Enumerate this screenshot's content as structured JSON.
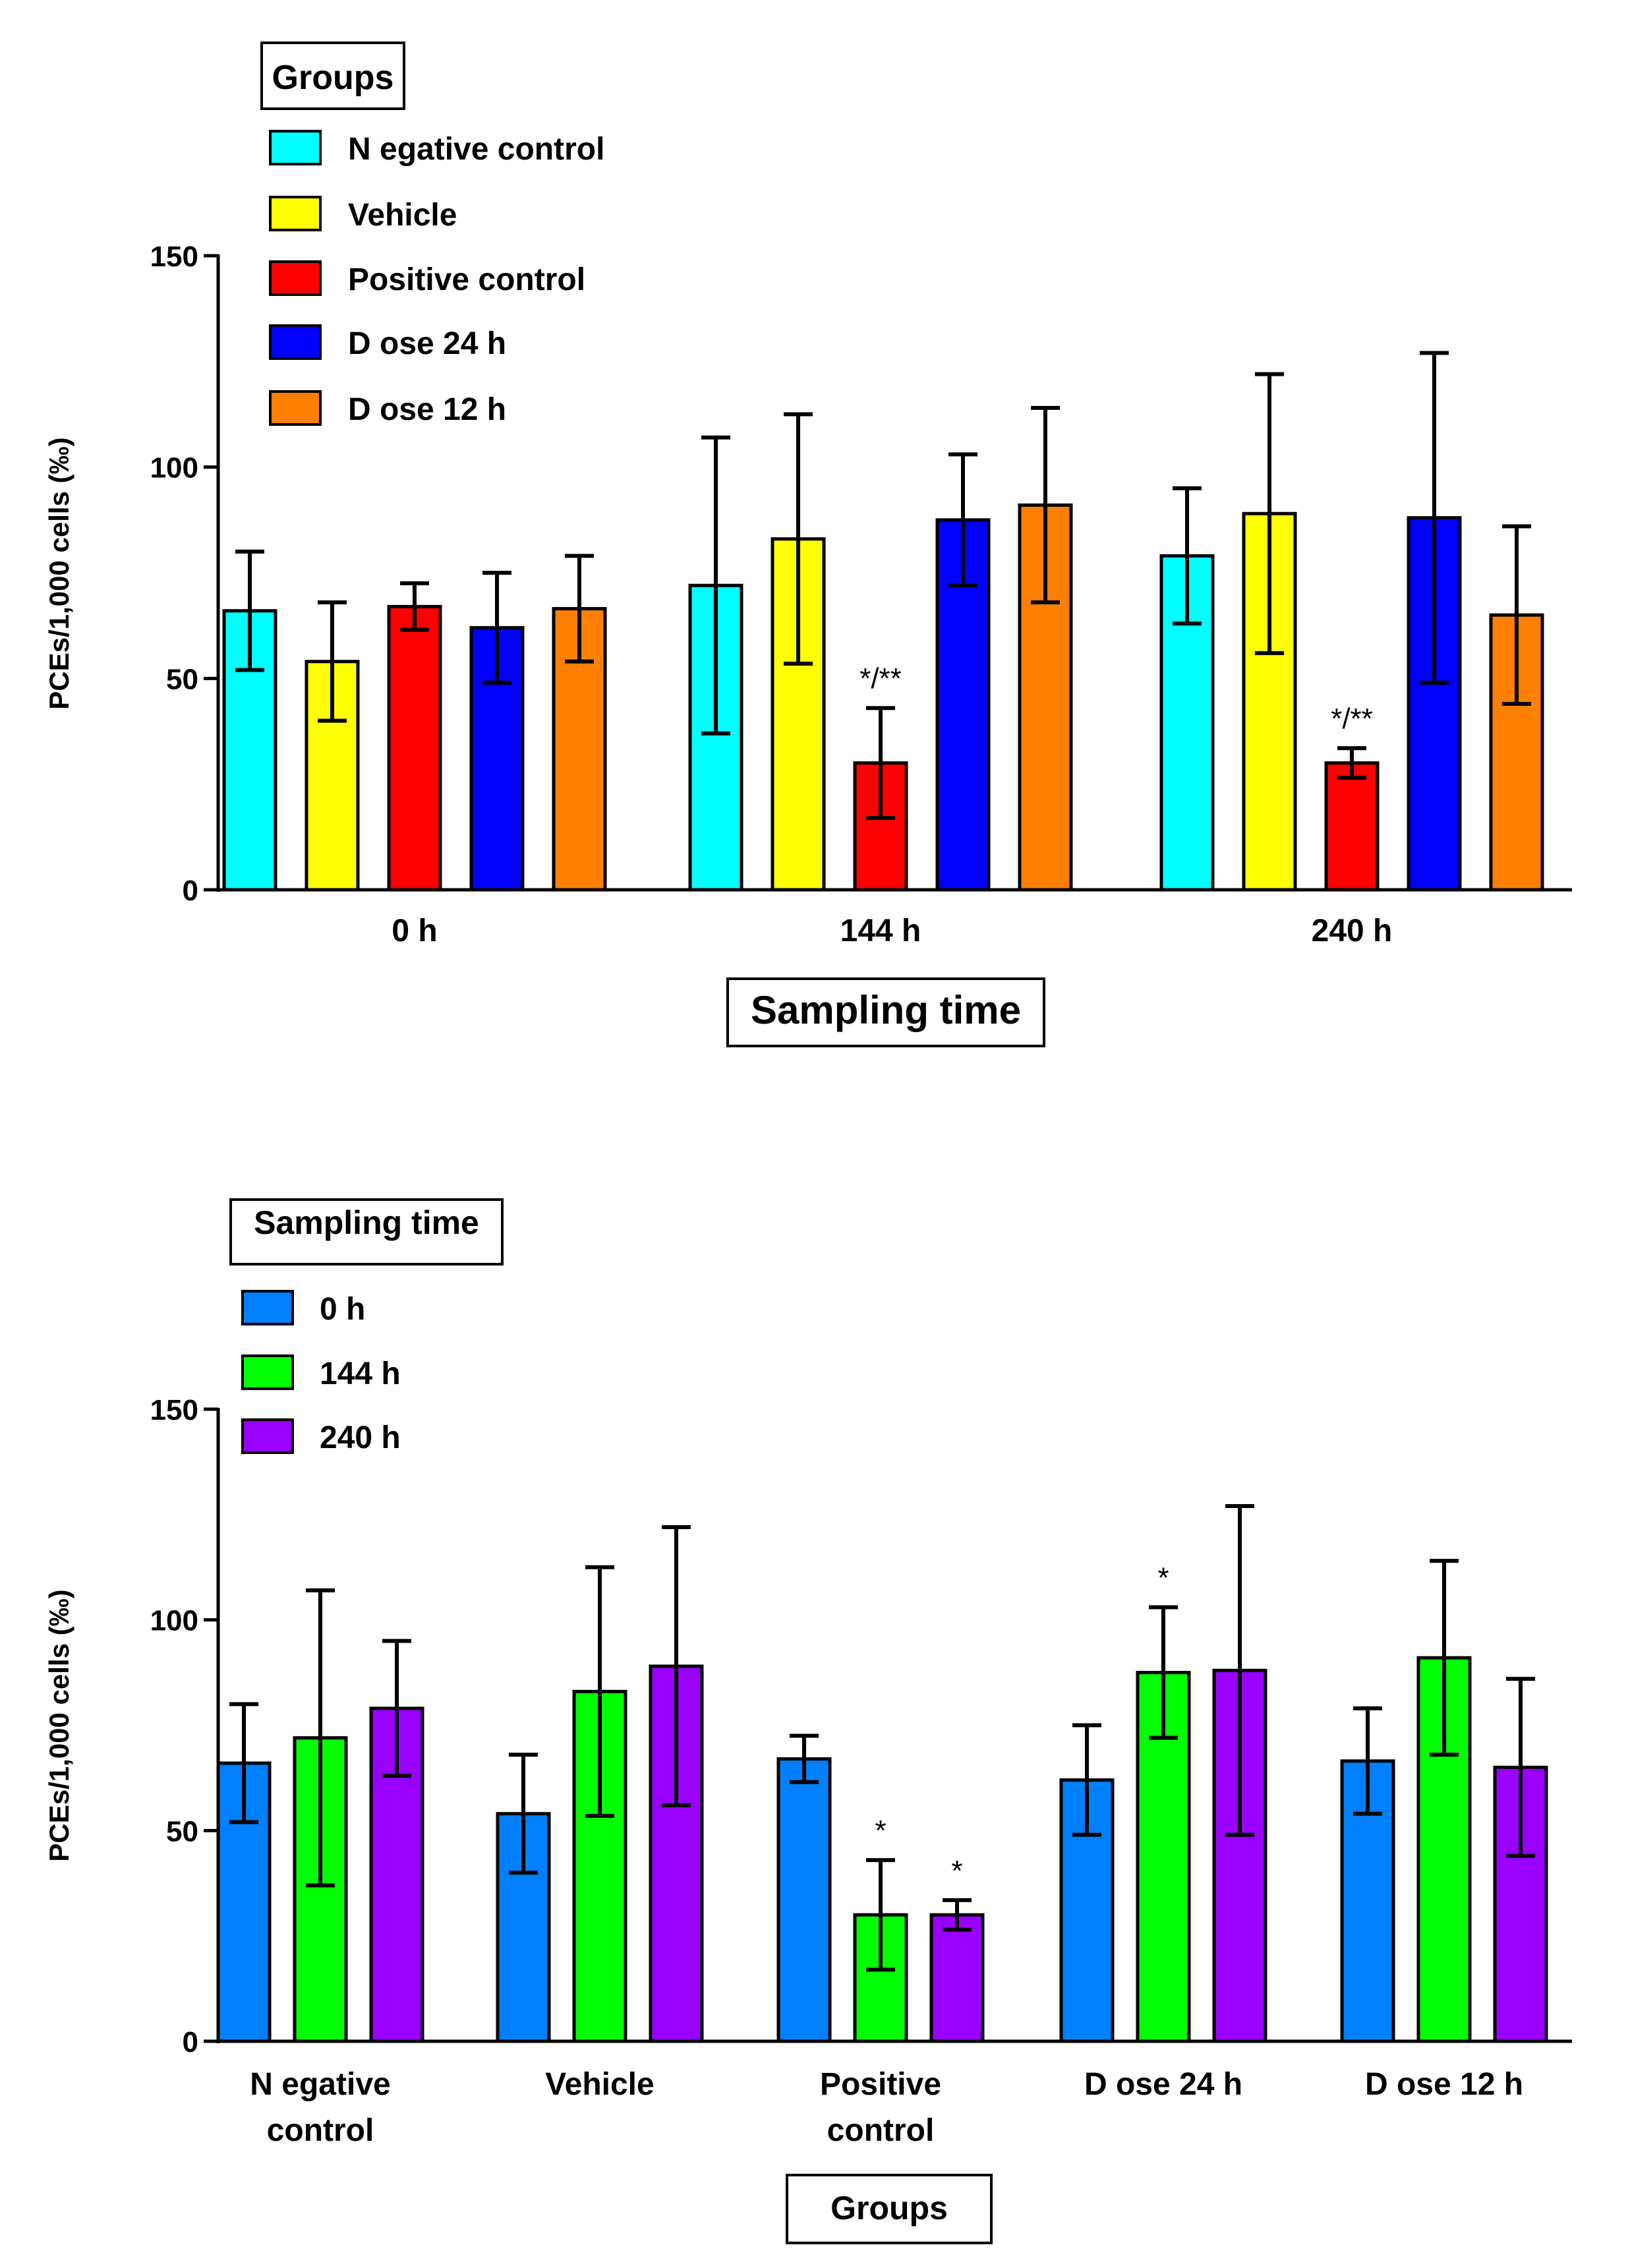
{
  "chart_data": [
    {
      "type": "bar",
      "xlabel": "Sampling time",
      "ylabel": "PCEs/1,000 cells (‰)",
      "ylim": [
        0,
        150
      ],
      "yticks": [
        0,
        50,
        100,
        150
      ],
      "categories": [
        "0 h",
        "144 h",
        "240 h"
      ],
      "legend_title": "Groups",
      "legend_placement": "top-left",
      "series": [
        {
          "name": "Negative control",
          "color": "#00FFFF",
          "values": [
            66,
            72,
            79
          ],
          "errors": [
            14,
            35,
            16
          ]
        },
        {
          "name": "Vehicle",
          "color": "#FFFF00",
          "values": [
            54,
            83,
            89
          ],
          "errors": [
            14,
            29.5,
            33
          ]
        },
        {
          "name": "Positive control",
          "color": "#FF0000",
          "values": [
            67,
            30,
            30
          ],
          "errors": [
            5.5,
            13,
            3.5
          ]
        },
        {
          "name": "Dose 24 h",
          "color": "#0000FF",
          "values": [
            62,
            87.5,
            88
          ],
          "errors": [
            13,
            15.5,
            39
          ]
        },
        {
          "name": "Dose 12 h",
          "color": "#FF8000",
          "values": [
            66.5,
            91,
            65
          ],
          "errors": [
            12.5,
            23,
            21
          ]
        }
      ],
      "annotations": [
        {
          "category": "144 h",
          "series": "Positive control",
          "text": "*/**"
        },
        {
          "category": "240 h",
          "series": "Positive control",
          "text": "*/**"
        }
      ]
    },
    {
      "type": "bar",
      "xlabel": "Groups",
      "ylabel": "PCEs/1,000 cells (‰)",
      "ylim": [
        0,
        150
      ],
      "yticks": [
        0,
        50,
        100,
        150
      ],
      "categories": [
        "Negative control",
        "Vehicle",
        "Positive control",
        "Dose 24 h",
        "Dose 12 h"
      ],
      "category_lines": [
        [
          "N egative",
          "control"
        ],
        [
          "Vehicle"
        ],
        [
          "Positive",
          "control"
        ],
        [
          "D ose 24 h"
        ],
        [
          "D ose 12 h"
        ]
      ],
      "legend_title": "Sampling time",
      "legend_placement": "top-left",
      "series": [
        {
          "name": "0 h",
          "color": "#0080FF",
          "values": [
            66,
            54,
            67,
            62,
            66.5
          ],
          "errors": [
            14,
            14,
            5.5,
            13,
            12.5
          ]
        },
        {
          "name": "144 h",
          "color": "#00FF00",
          "values": [
            72,
            83,
            30,
            87.5,
            91
          ],
          "errors": [
            35,
            29.5,
            13,
            15.5,
            23
          ]
        },
        {
          "name": "240 h",
          "color": "#9900FF",
          "values": [
            79,
            89,
            30,
            88,
            65
          ],
          "errors": [
            16,
            33,
            3.5,
            39,
            21
          ]
        }
      ],
      "annotations": [
        {
          "category": "Positive control",
          "series": "144 h",
          "text": "*"
        },
        {
          "category": "Positive control",
          "series": "240 h",
          "text": "*"
        },
        {
          "category": "Dose 24 h",
          "series": "144 h",
          "text": "*"
        }
      ]
    }
  ],
  "legend_labels_top": [
    "N egative control",
    "Vehicle",
    "Positive control",
    "D ose 24 h",
    "D ose 12 h"
  ],
  "legend_labels_bottom": [
    "0 h",
    "144 h",
    "240 h"
  ]
}
